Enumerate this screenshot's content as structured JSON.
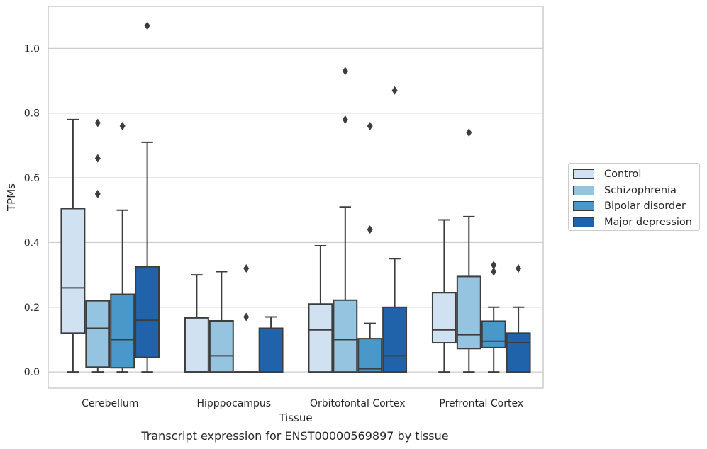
{
  "caption": "Transcript expression for ENST00000569897 by tissue",
  "chart_data": {
    "type": "boxplot",
    "title": "",
    "xlabel": "Tissue",
    "ylabel": "TPMs",
    "ylim": [
      -0.05,
      1.13
    ],
    "yticks": [
      "0.0",
      "0.2",
      "0.4",
      "0.6",
      "0.8",
      "1.0"
    ],
    "grid": "horizontal",
    "legend_position": "right",
    "categories": [
      "Cerebellum",
      "Hipppocampus",
      "Orbitofontal Cortex",
      "Prefrontal Cortex"
    ],
    "series": [
      {
        "name": "Control",
        "color": "#d0e1f2",
        "boxes": [
          {
            "whislo": 0.0,
            "q1": 0.12,
            "med": 0.26,
            "q3": 0.505,
            "whishi": 0.78,
            "fliers": []
          },
          {
            "whislo": 0.0,
            "q1": 0.0,
            "med": 0.0,
            "q3": 0.167,
            "whishi": 0.3,
            "fliers": []
          },
          {
            "whislo": 0.0,
            "q1": 0.0,
            "med": 0.13,
            "q3": 0.21,
            "whishi": 0.39,
            "fliers": []
          },
          {
            "whislo": 0.0,
            "q1": 0.09,
            "med": 0.13,
            "q3": 0.245,
            "whishi": 0.47,
            "fliers": []
          }
        ]
      },
      {
        "name": "Schizophrenia",
        "color": "#94c4df",
        "boxes": [
          {
            "whislo": 0.0,
            "q1": 0.015,
            "med": 0.135,
            "q3": 0.22,
            "whishi": 0.22,
            "fliers": [
              0.55,
              0.66,
              0.77
            ]
          },
          {
            "whislo": 0.0,
            "q1": 0.0,
            "med": 0.05,
            "q3": 0.158,
            "whishi": 0.31,
            "fliers": []
          },
          {
            "whislo": 0.0,
            "q1": 0.0,
            "med": 0.1,
            "q3": 0.222,
            "whishi": 0.51,
            "fliers": [
              0.78,
              0.93
            ]
          },
          {
            "whislo": 0.0,
            "q1": 0.072,
            "med": 0.115,
            "q3": 0.295,
            "whishi": 0.48,
            "fliers": [
              0.74
            ]
          }
        ]
      },
      {
        "name": "Bipolar disorder",
        "color": "#4a98c9",
        "boxes": [
          {
            "whislo": 0.0,
            "q1": 0.013,
            "med": 0.1,
            "q3": 0.24,
            "whishi": 0.5,
            "fliers": [
              0.76
            ]
          },
          {
            "whislo": 0.0,
            "q1": 0.0,
            "med": 0.0,
            "q3": 0.0,
            "whishi": 0.0,
            "fliers": [
              0.17,
              0.32
            ]
          },
          {
            "whislo": 0.0,
            "q1": 0.0,
            "med": 0.01,
            "q3": 0.103,
            "whishi": 0.15,
            "fliers": [
              0.44,
              0.76
            ]
          },
          {
            "whislo": 0.0,
            "q1": 0.075,
            "med": 0.095,
            "q3": 0.157,
            "whishi": 0.2,
            "fliers": [
              0.31,
              0.33
            ]
          }
        ]
      },
      {
        "name": "Major depression",
        "color": "#2163aa",
        "boxes": [
          {
            "whislo": 0.0,
            "q1": 0.045,
            "med": 0.16,
            "q3": 0.325,
            "whishi": 0.71,
            "fliers": [
              1.07
            ]
          },
          {
            "whislo": 0.0,
            "q1": 0.0,
            "med": 0.0,
            "q3": 0.135,
            "whishi": 0.17,
            "fliers": []
          },
          {
            "whislo": 0.0,
            "q1": 0.0,
            "med": 0.05,
            "q3": 0.2,
            "whishi": 0.35,
            "fliers": [
              0.87
            ]
          },
          {
            "whislo": 0.0,
            "q1": 0.0,
            "med": 0.09,
            "q3": 0.12,
            "whishi": 0.2,
            "fliers": [
              0.32
            ]
          }
        ]
      }
    ]
  }
}
